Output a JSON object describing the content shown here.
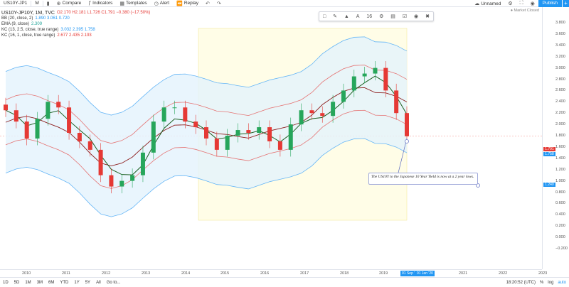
{
  "topbar": {
    "symbol": "US10Y-JP1",
    "interval": "M",
    "compare_label": "Compare",
    "indicators_label": "Indicators",
    "templates_label": "Templates",
    "alert_label": "Alert",
    "replay_label": "Replay",
    "layout_name": "Unnamed",
    "publish_label": "Publish"
  },
  "legend": {
    "title": "US10Y-JP10Y, 1M, TVC",
    "ohlc": "O2.170  H2.181  L1.726  C1.791  −0.380 (−17.50%)",
    "bb_label": "BB (20, close, 2)",
    "bb_values": "1.890  3.061  0.720",
    "ema_label": "EMA (9, close)",
    "ema_value": "2.309",
    "kc1_label": "KC (13, 2.5, close, true range)",
    "kc1_values": "3.032  2.395  1.758",
    "kc2_label": "KC (16, 1, close, true range)",
    "kc2_values": "2.677  2.435  2.193"
  },
  "market_status": "● Market Closed",
  "callout_text": "The US10Y to the Japanese 10 Year Yield is now at a 2 year lows.",
  "price_axis": {
    "ticks": [
      "3.800",
      "3.600",
      "3.400",
      "3.200",
      "3.000",
      "2.800",
      "2.600",
      "2.400",
      "2.200",
      "2.000",
      "1.800",
      "1.600",
      "1.400",
      "1.200",
      "1.000",
      "0.800",
      "0.600",
      "0.400",
      "0.200",
      "0.000",
      "−0.200"
    ],
    "last_price": "1.791",
    "tag2": "1.758",
    "tag3": "1.240"
  },
  "time_axis": {
    "labels": [
      "2010",
      "2011",
      "2012",
      "2013",
      "2014",
      "2015",
      "2016",
      "2017",
      "2018",
      "2019",
      "2021",
      "2022",
      "2023"
    ],
    "range_tag": "01 Sep '  01 Jan '20"
  },
  "bottombar": {
    "ranges": [
      "1D",
      "5D",
      "1M",
      "3M",
      "6M",
      "YTD",
      "1Y",
      "5Y",
      "All"
    ],
    "goto_label": "Go to...",
    "time": "18:20:52 (UTC)",
    "pct": "%",
    "log": "log",
    "auto": "auto"
  },
  "colors": {
    "accent": "#2196f3",
    "up": "#26a65b",
    "down": "#e53935",
    "band": "#e3f2fd",
    "highlight": "#fffde7"
  },
  "chart_data": {
    "type": "candlestick",
    "x": [
      "2010-01",
      "2010-04",
      "2010-07",
      "2010-10",
      "2011-01",
      "2011-04",
      "2011-07",
      "2011-10",
      "2012-01",
      "2012-04",
      "2012-07",
      "2012-10",
      "2013-01",
      "2013-04",
      "2013-07",
      "2013-10",
      "2014-01",
      "2014-04",
      "2014-07",
      "2014-10",
      "2015-01",
      "2015-04",
      "2015-07",
      "2015-10",
      "2016-01",
      "2016-04",
      "2016-07",
      "2016-10",
      "2017-01",
      "2017-04",
      "2017-07",
      "2017-10",
      "2018-01",
      "2018-04",
      "2018-07",
      "2018-10",
      "2019-01",
      "2019-04",
      "2019-07"
    ],
    "close": [
      2.25,
      2.05,
      1.75,
      2.1,
      2.4,
      2.3,
      1.85,
      1.7,
      1.55,
      1.1,
      0.9,
      1.0,
      1.1,
      1.5,
      2.05,
      2.3,
      2.3,
      2.05,
      1.95,
      1.75,
      1.55,
      1.8,
      1.9,
      1.85,
      1.95,
      1.7,
      1.55,
      2.0,
      2.25,
      2.2,
      2.15,
      2.4,
      2.6,
      2.85,
      2.9,
      3.0,
      2.6,
      2.2,
      1.79
    ],
    "ylim": [
      -0.2,
      3.8
    ]
  }
}
